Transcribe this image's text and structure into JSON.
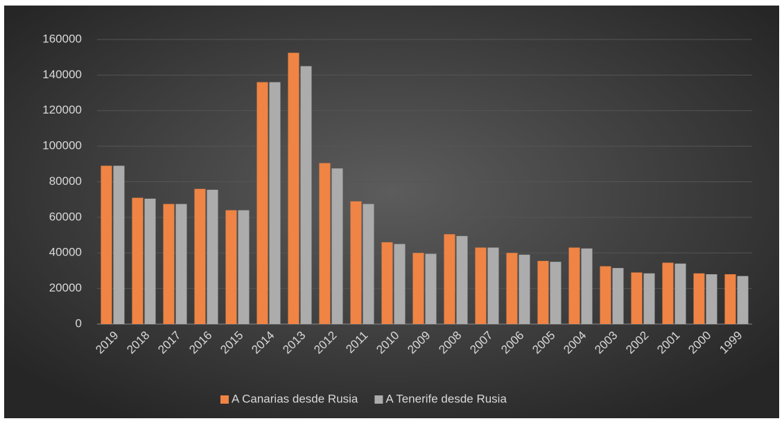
{
  "chart_data": {
    "type": "bar",
    "categories": [
      "2019",
      "2018",
      "2017",
      "2016",
      "2015",
      "2014",
      "2013",
      "2012",
      "2011",
      "2010",
      "2009",
      "2008",
      "2007",
      "2006",
      "2005",
      "2004",
      "2003",
      "2002",
      "2001",
      "2000",
      "1999"
    ],
    "series": [
      {
        "name": "A Canarias desde Rusia",
        "color": "#ef8444",
        "values": [
          89000,
          71000,
          67500,
          76000,
          64000,
          136000,
          152500,
          90500,
          69000,
          46000,
          40000,
          50500,
          43000,
          40000,
          35500,
          43000,
          32500,
          29000,
          34500,
          28500,
          28000
        ]
      },
      {
        "name": "A Tenerife desde Rusia",
        "color": "#acacac",
        "values": [
          89000,
          70500,
          67500,
          75500,
          64000,
          136000,
          145000,
          87500,
          67500,
          45000,
          39500,
          49500,
          43000,
          39000,
          35000,
          42500,
          31500,
          28500,
          34000,
          28000,
          27000
        ]
      }
    ],
    "ylim": [
      0,
      160000
    ],
    "yticks": [
      0,
      20000,
      40000,
      60000,
      80000,
      100000,
      120000,
      140000,
      160000
    ],
    "grid": true,
    "legend": "bottom"
  }
}
